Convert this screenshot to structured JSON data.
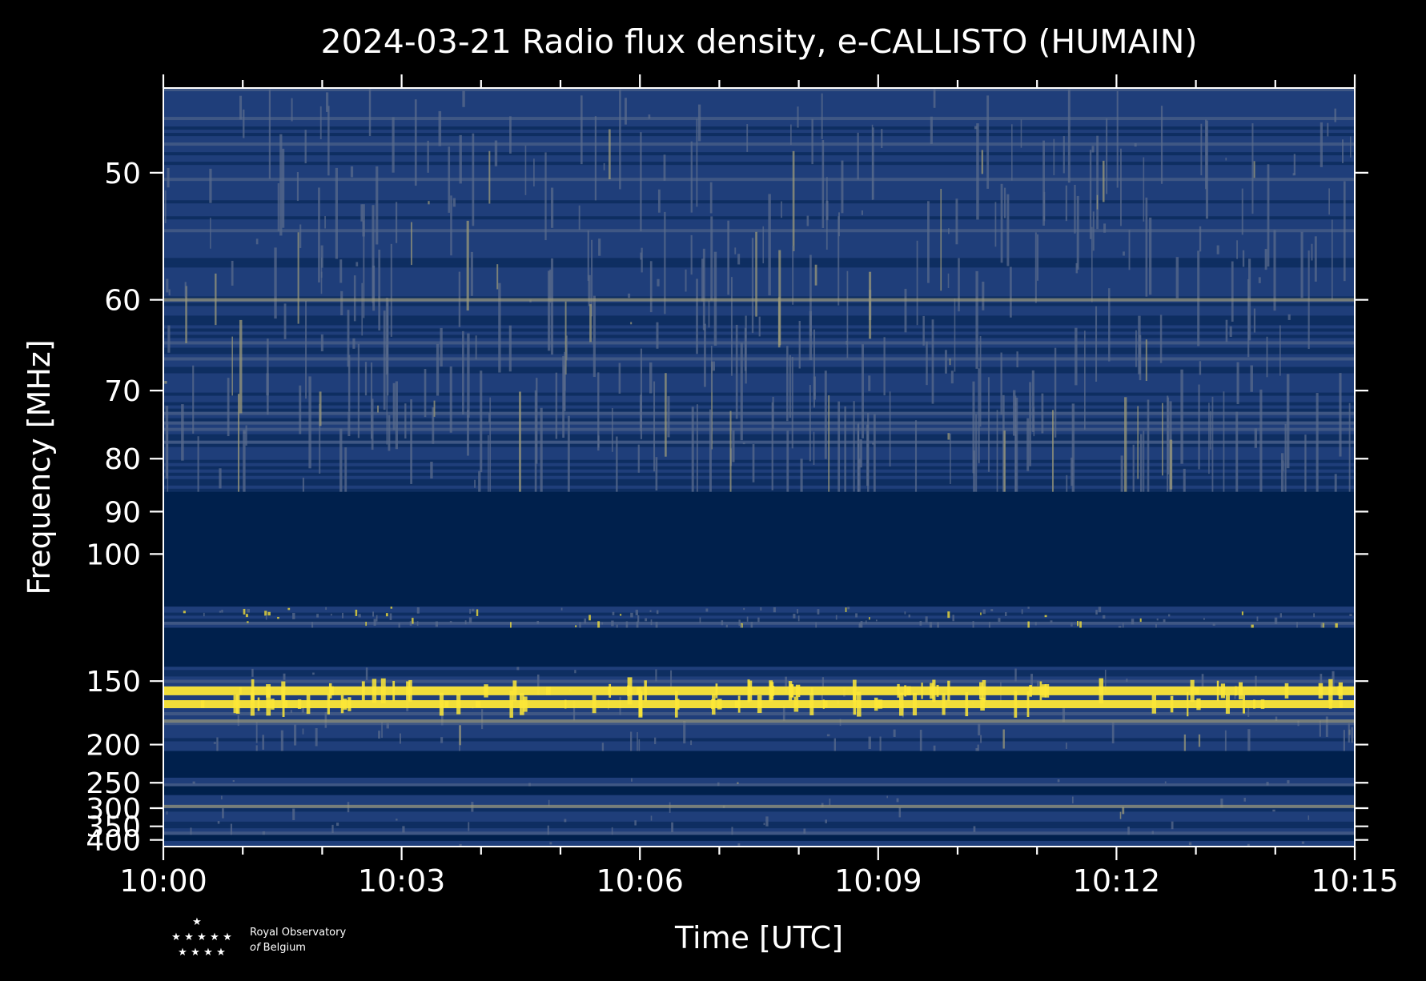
{
  "chart_data": {
    "type": "heatmap",
    "title": "2024-03-21 Radio flux density, e-CALLISTO (HUMAIN)",
    "xlabel": "Time [UTC]",
    "ylabel": "Frequency [MHz]",
    "x_ticks": [
      "10:00",
      "10:03",
      "10:06",
      "10:09",
      "10:12",
      "10:15"
    ],
    "x_range_minutes": [
      0,
      15
    ],
    "y_ticks": [
      50,
      60,
      70,
      80,
      90,
      100,
      150,
      200,
      250,
      300,
      350,
      400
    ],
    "y_scale": "reciprocal",
    "y_range": [
      45,
      430
    ],
    "colormap": [
      "#00204c",
      "#1f3e7a",
      "#5a6b8c",
      "#9c9a7a",
      "#fde737"
    ],
    "bands": [
      {
        "f_lo": 45,
        "f_hi": 86,
        "level": "noise"
      },
      {
        "f_lo": 86,
        "f_hi": 116,
        "level": "blank"
      },
      {
        "f_lo": 116,
        "f_hi": 124,
        "level": "active"
      },
      {
        "f_lo": 124,
        "f_hi": 142,
        "level": "blank"
      },
      {
        "f_lo": 142,
        "f_hi": 207,
        "level": "noise"
      },
      {
        "f_lo": 207,
        "f_hi": 242,
        "level": "blank"
      },
      {
        "f_lo": 242,
        "f_hi": 256,
        "level": "noise"
      },
      {
        "f_lo": 256,
        "f_hi": 272,
        "level": "blank"
      },
      {
        "f_lo": 272,
        "f_hi": 380,
        "level": "noise"
      },
      {
        "f_lo": 380,
        "f_hi": 404,
        "level": "blank"
      },
      {
        "f_lo": 404,
        "f_hi": 430,
        "level": "noise"
      }
    ],
    "emission_lines": [
      {
        "freq": 60,
        "intensity": "medium"
      },
      {
        "freq": 156,
        "intensity": "saturated"
      },
      {
        "freq": 165,
        "intensity": "high"
      },
      {
        "freq": 178,
        "intensity": "medium"
      },
      {
        "freq": 296,
        "intensity": "medium"
      }
    ],
    "colors": {
      "background": "#000000",
      "foreground": "#ffffff"
    }
  },
  "logo": {
    "line1": "Royal Observatory",
    "line2_italic": "of",
    "line2": "Belgium"
  }
}
